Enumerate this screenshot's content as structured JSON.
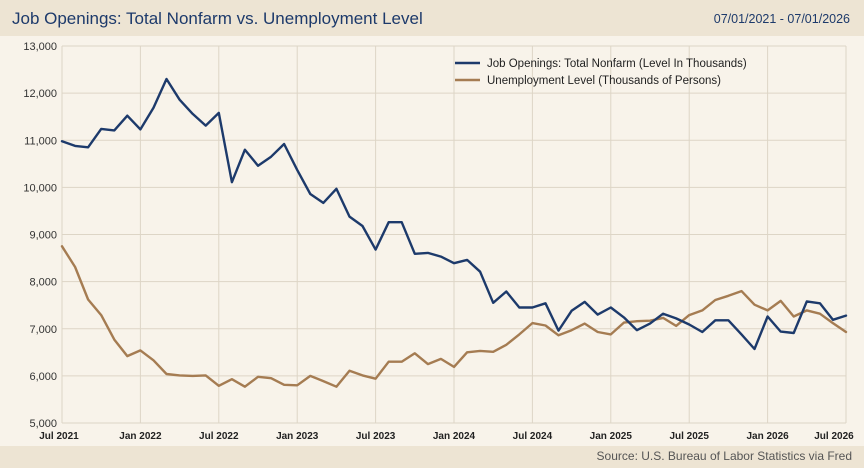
{
  "header": {
    "title": "Job Openings: Total Nonfarm vs. Unemployment Level",
    "date_range": "07/01/2021 - 07/01/2026"
  },
  "footer": {
    "source": "Source: U.S. Bureau of Labor Statistics via Fred"
  },
  "colors": {
    "job_openings": "#1d3a6b",
    "unemployment": "#a57c52",
    "grid": "#ddd5c6",
    "background": "#f8f3ea",
    "header_bg": "#ede4d3"
  },
  "chart_data": {
    "type": "line",
    "title": "Job Openings: Total Nonfarm vs. Unemployment Level",
    "xlim": [
      "2021-07",
      "2026-07"
    ],
    "ylim": [
      5000,
      13000
    ],
    "y_ticks": [
      5000,
      6000,
      7000,
      8000,
      9000,
      10000,
      11000,
      12000,
      13000
    ],
    "y_tick_labels": [
      "5,000",
      "6,000",
      "7,000",
      "8,000",
      "9,000",
      "10,000",
      "11,000",
      "12,000",
      "13,000"
    ],
    "x_tick_labels": [
      "Jul 2021",
      "Jan 2022",
      "Jul 2022",
      "Jan 2023",
      "Jul 2023",
      "Jan 2024",
      "Jul 2024",
      "Jan 2025",
      "Jul 2025",
      "Jan 2026",
      "Jul 2026"
    ],
    "grid": true,
    "legend_position": "top-right",
    "x": [
      "2021-07",
      "2021-08",
      "2021-09",
      "2021-10",
      "2021-11",
      "2021-12",
      "2022-01",
      "2022-02",
      "2022-03",
      "2022-04",
      "2022-05",
      "2022-06",
      "2022-07",
      "2022-08",
      "2022-09",
      "2022-10",
      "2022-11",
      "2022-12",
      "2023-01",
      "2023-02",
      "2023-03",
      "2023-04",
      "2023-05",
      "2023-06",
      "2023-07",
      "2023-08",
      "2023-09",
      "2023-10",
      "2023-11",
      "2023-12",
      "2024-01",
      "2024-02",
      "2024-03",
      "2024-04",
      "2024-05",
      "2024-06",
      "2024-07",
      "2024-08",
      "2024-09",
      "2024-10",
      "2024-11",
      "2024-12",
      "2025-01",
      "2025-02",
      "2025-03",
      "2025-04",
      "2025-05",
      "2025-06",
      "2025-07",
      "2025-08",
      "2025-09",
      "2025-10",
      "2025-11",
      "2025-12",
      "2026-01",
      "2026-02",
      "2026-03",
      "2026-04",
      "2026-05",
      "2026-06",
      "2026-07"
    ],
    "series": [
      {
        "name": "Job Openings: Total Nonfarm (Level In Thousands)",
        "values": [
          10980,
          10880,
          10850,
          11240,
          11210,
          11520,
          11230,
          11690,
          12300,
          11860,
          11560,
          11310,
          11580,
          10110,
          10800,
          10460,
          10650,
          10920,
          10370,
          9860,
          9670,
          9970,
          9380,
          9180,
          8680,
          9260,
          9260,
          8590,
          8610,
          8530,
          8390,
          8460,
          8210,
          7550,
          7790,
          7450,
          7450,
          7540,
          6960,
          7380,
          7570,
          7300,
          7450,
          7240,
          6970,
          7110,
          7320,
          7220,
          7090,
          6930,
          7180,
          7180,
          6880,
          6570,
          7260,
          6940,
          6910,
          7580,
          7540,
          7190,
          7280
        ]
      },
      {
        "name": "Unemployment Level (Thousands of Persons)",
        "values": [
          8750,
          8310,
          7620,
          7290,
          6770,
          6420,
          6540,
          6330,
          6040,
          6010,
          6000,
          6010,
          5790,
          5930,
          5770,
          5980,
          5950,
          5810,
          5800,
          6000,
          5890,
          5770,
          6110,
          6010,
          5940,
          6300,
          6300,
          6480,
          6250,
          6360,
          6190,
          6500,
          6530,
          6510,
          6660,
          6880,
          7120,
          7070,
          6860,
          6970,
          7110,
          6930,
          6880,
          7130,
          7160,
          7170,
          7230,
          7060,
          7290,
          7390,
          7610,
          7700,
          7800,
          7510,
          7390,
          7590,
          7260,
          7390,
          7320,
          7120,
          6930
        ]
      }
    ]
  }
}
